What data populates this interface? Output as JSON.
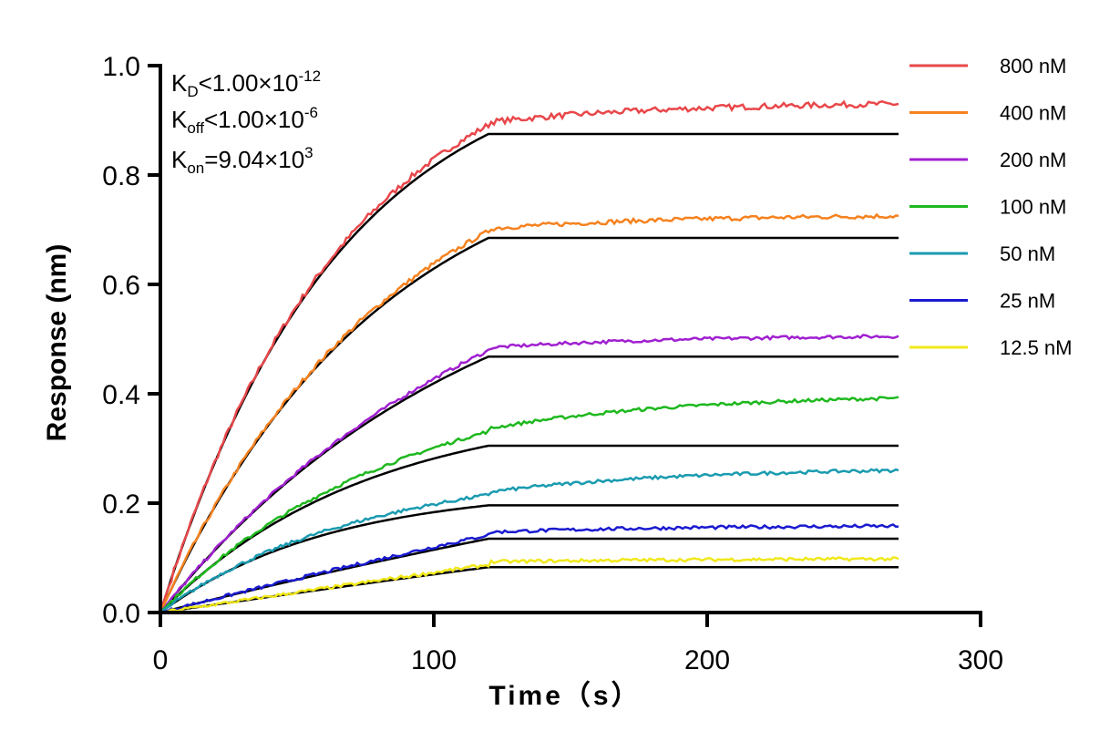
{
  "chart_data": {
    "type": "line",
    "title": "",
    "xlabel": "Time（s）",
    "ylabel": "Response (nm)",
    "xlim": [
      0,
      300
    ],
    "ylim": [
      0,
      1.0
    ],
    "x_ticks": [
      "0",
      "100",
      "200",
      "300"
    ],
    "y_ticks": [
      "0.0",
      "0.2",
      "0.4",
      "0.6",
      "0.8",
      "1.0"
    ],
    "grid": false,
    "legend_position": "right",
    "association_end": 120,
    "end_time": 270,
    "annotations": {
      "kd_label": "K",
      "kd_sub": "D",
      "kd_rel": "<1.00×10",
      "kd_exp": "-12",
      "koff_label": "K",
      "koff_sub": "off",
      "koff_rel": "<1.00×10",
      "koff_exp": "-6",
      "kon_label": "K",
      "kon_sub": "on",
      "kon_rel": "=9.04×10",
      "kon_exp": "3"
    },
    "series": [
      {
        "name": "800 nM",
        "color": "#e8474a",
        "plateau": 0.875,
        "rate": 0.0154,
        "end_value": 0.93
      },
      {
        "name": "400 nM",
        "color": "#f5821f",
        "plateau": 0.685,
        "rate": 0.0124,
        "end_value": 0.725
      },
      {
        "name": "200 nM",
        "color": "#a020d0",
        "plateau": 0.468,
        "rate": 0.0085,
        "end_value": 0.505
      },
      {
        "name": "100 nM",
        "color": "#1eb81e",
        "plateau": 0.305,
        "rate": 0.0134,
        "end_value": 0.392
      },
      {
        "name": "50 nM",
        "color": "#1a9bb0",
        "plateau": 0.196,
        "rate": 0.0162,
        "end_value": 0.26
      },
      {
        "name": "25 nM",
        "color": "#1a1ad0",
        "plateau": 0.135,
        "rate": 0.002,
        "end_value": 0.158
      },
      {
        "name": "12.5 nM",
        "color": "#f0e81a",
        "plateau": 0.083,
        "rate": 0.001,
        "end_value": 0.098
      }
    ]
  }
}
